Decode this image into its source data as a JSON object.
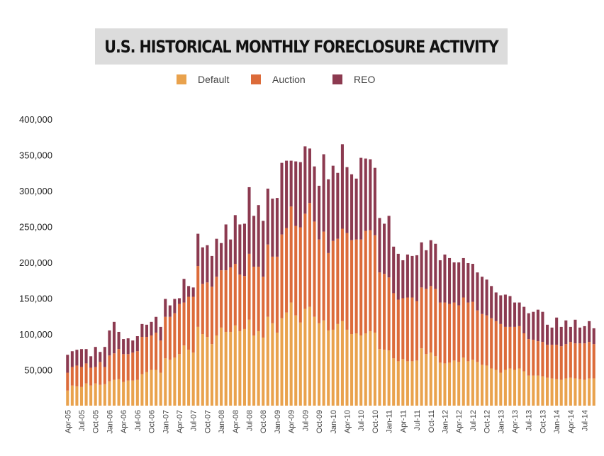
{
  "title": "U.S. HISTORICAL MONTHLY FORECLOSURE ACTIVITY",
  "colors": {
    "default": "#e9a24d",
    "auction": "#dc6b3a",
    "reo": "#8c3a50",
    "axis": "#444444"
  },
  "chart_data": {
    "type": "bar",
    "stacked": true,
    "title": "U.S. HISTORICAL MONTHLY FORECLOSURE ACTIVITY",
    "legend_position": "top",
    "grid": false,
    "ylim": [
      0,
      400000
    ],
    "y_ticks": [
      50000,
      100000,
      150000,
      200000,
      250000,
      300000,
      350000,
      400000
    ],
    "y_tick_labels": [
      "50,000",
      "100,000",
      "150,000",
      "200,000",
      "250,000",
      "300,000",
      "350,000",
      "400,000"
    ],
    "x_tick_labels": [
      {
        "index": 0,
        "label": "Apr-05"
      },
      {
        "index": 3,
        "label": "Jul-05"
      },
      {
        "index": 6,
        "label": "Oct-05"
      },
      {
        "index": 9,
        "label": "Jan-06"
      },
      {
        "index": 12,
        "label": "Apr-06"
      },
      {
        "index": 15,
        "label": "Jul-06"
      },
      {
        "index": 18,
        "label": "Oct-06"
      },
      {
        "index": 21,
        "label": "Jan-07"
      },
      {
        "index": 24,
        "label": "Apr-07"
      },
      {
        "index": 27,
        "label": "Jul-07"
      },
      {
        "index": 30,
        "label": "Oct-07"
      },
      {
        "index": 33,
        "label": "Jan-08"
      },
      {
        "index": 36,
        "label": "Apr-08"
      },
      {
        "index": 39,
        "label": "Jul-08"
      },
      {
        "index": 42,
        "label": "Oct-08"
      },
      {
        "index": 45,
        "label": "Jan-09"
      },
      {
        "index": 48,
        "label": "Apr-09"
      },
      {
        "index": 51,
        "label": "Jul-09"
      },
      {
        "index": 54,
        "label": "Oct-09"
      },
      {
        "index": 57,
        "label": "Jan-10"
      },
      {
        "index": 60,
        "label": "Apr-10"
      },
      {
        "index": 63,
        "label": "Jul-10"
      },
      {
        "index": 66,
        "label": "Oct-10"
      },
      {
        "index": 69,
        "label": "Jan-11"
      },
      {
        "index": 72,
        "label": "Apr-11"
      },
      {
        "index": 75,
        "label": "Jul-11"
      },
      {
        "index": 78,
        "label": "Oct-11"
      },
      {
        "index": 81,
        "label": "Jan-12"
      },
      {
        "index": 84,
        "label": "Apr-12"
      },
      {
        "index": 87,
        "label": "Jul-12"
      },
      {
        "index": 90,
        "label": "Oct-12"
      },
      {
        "index": 93,
        "label": "Jan-13"
      },
      {
        "index": 96,
        "label": "Apr-13"
      },
      {
        "index": 99,
        "label": "Jul-13"
      },
      {
        "index": 102,
        "label": "Oct-13"
      },
      {
        "index": 105,
        "label": "Jan-14"
      },
      {
        "index": 108,
        "label": "Apr-14"
      },
      {
        "index": 111,
        "label": "Jul-14"
      }
    ],
    "series": [
      {
        "name": "Default",
        "values": [
          21000,
          28000,
          27000,
          26000,
          31000,
          28000,
          31000,
          29000,
          30000,
          34000,
          36000,
          37000,
          33000,
          35000,
          35000,
          36000,
          44000,
          47000,
          50000,
          50000,
          46000,
          66000,
          64000,
          67000,
          72000,
          84000,
          78000,
          74000,
          110000,
          100000,
          96000,
          86000,
          98000,
          109000,
          103000,
          103000,
          112000,
          104000,
          107000,
          120000,
          98000,
          104000,
          95000,
          124000,
          115000,
          102000,
          122000,
          130000,
          144000,
          126000,
          116000,
          135000,
          138000,
          124000,
          115000,
          119000,
          105000,
          106000,
          114000,
          118000,
          106000,
          100000,
          101000,
          98000,
          101000,
          104000,
          102000,
          79000,
          78000,
          77000,
          66000,
          62000,
          65000,
          62000,
          62000,
          63000,
          80000,
          72000,
          74000,
          69000,
          60000,
          59000,
          60000,
          63000,
          61000,
          67000,
          62000,
          64000,
          61000,
          57000,
          56000,
          52000,
          50000,
          46000,
          50000,
          52000,
          50000,
          52000,
          48000,
          42000,
          42000,
          42000,
          41000,
          39000,
          38000,
          37000,
          36000,
          38000,
          39000,
          38000,
          37000,
          36000,
          38000,
          38000
        ],
        "groupwise": true
      },
      {
        "name": "Auction",
        "values": [
          25000,
          26000,
          29000,
          28000,
          28000,
          25000,
          23000,
          32000,
          24000,
          36000,
          37000,
          42000,
          39000,
          37000,
          39000,
          40000,
          52000,
          49000,
          48000,
          52000,
          45000,
          58000,
          60000,
          62000,
          70000,
          60000,
          74000,
          78000,
          85000,
          70000,
          76000,
          80000,
          82000,
          80000,
          86000,
          90000,
          86000,
          79000,
          74000,
          92000,
          96000,
          90000,
          85000,
          101000,
          93000,
          106000,
          117000,
          118000,
          134000,
          125000,
          133000,
          133000,
          145000,
          133000,
          117000,
          124000,
          108000,
          124000,
          119000,
          129000,
          135000,
          131000,
          131000,
          134000,
          143000,
          141000,
          136000,
          107000,
          106000,
          102000,
          91000,
          86000,
          85000,
          89000,
          89000,
          83000,
          85000,
          91000,
          93000,
          94000,
          84000,
          85000,
          82000,
          81000,
          79000,
          84000,
          82000,
          81000,
          72000,
          71000,
          70000,
          70000,
          68000,
          68000,
          60000,
          58000,
          60000,
          59000,
          53000,
          51000,
          50000,
          48000,
          48000,
          46000,
          47000,
          48000,
          47000,
          48000,
          50000,
          49000,
          50000,
          51000,
          51000,
          48000
        ],
        "groupwise": true
      },
      {
        "name": "REO",
        "values": [
          25000,
          22000,
          22000,
          25000,
          20000,
          16000,
          28000,
          14000,
          28000,
          35000,
          44000,
          24000,
          21000,
          22000,
          17000,
          21000,
          18000,
          17000,
          19000,
          22000,
          19000,
          25000,
          16000,
          20000,
          8000,
          33000,
          15000,
          13000,
          45000,
          51000,
          52000,
          43000,
          53000,
          38000,
          64000,
          39000,
          68000,
          70000,
          73000,
          93000,
          71000,
          86000,
          78000,
          78000,
          81000,
          82000,
          100000,
          94000,
          64000,
          90000,
          91000,
          94000,
          76000,
          77000,
          75000,
          108000,
          103000,
          105000,
          92000,
          118000,
          92000,
          92000,
          85000,
          114000,
          101000,
          99000,
          94000,
          76000,
          70000,
          86000,
          65000,
          64000,
          53000,
          60000,
          58000,
          64000,
          63000,
          54000,
          64000,
          63000,
          59000,
          67000,
          64000,
          56000,
          60000,
          55000,
          55000,
          53000,
          53000,
          52000,
          50000,
          45000,
          40000,
          40000,
          45000,
          43000,
          34000,
          33000,
          37000,
          36000,
          39000,
          44000,
          42000,
          28000,
          24000,
          38000,
          27000,
          33000,
          21000,
          33000,
          22000,
          24000,
          29000,
          22000
        ],
        "groupwise": true
      }
    ]
  }
}
